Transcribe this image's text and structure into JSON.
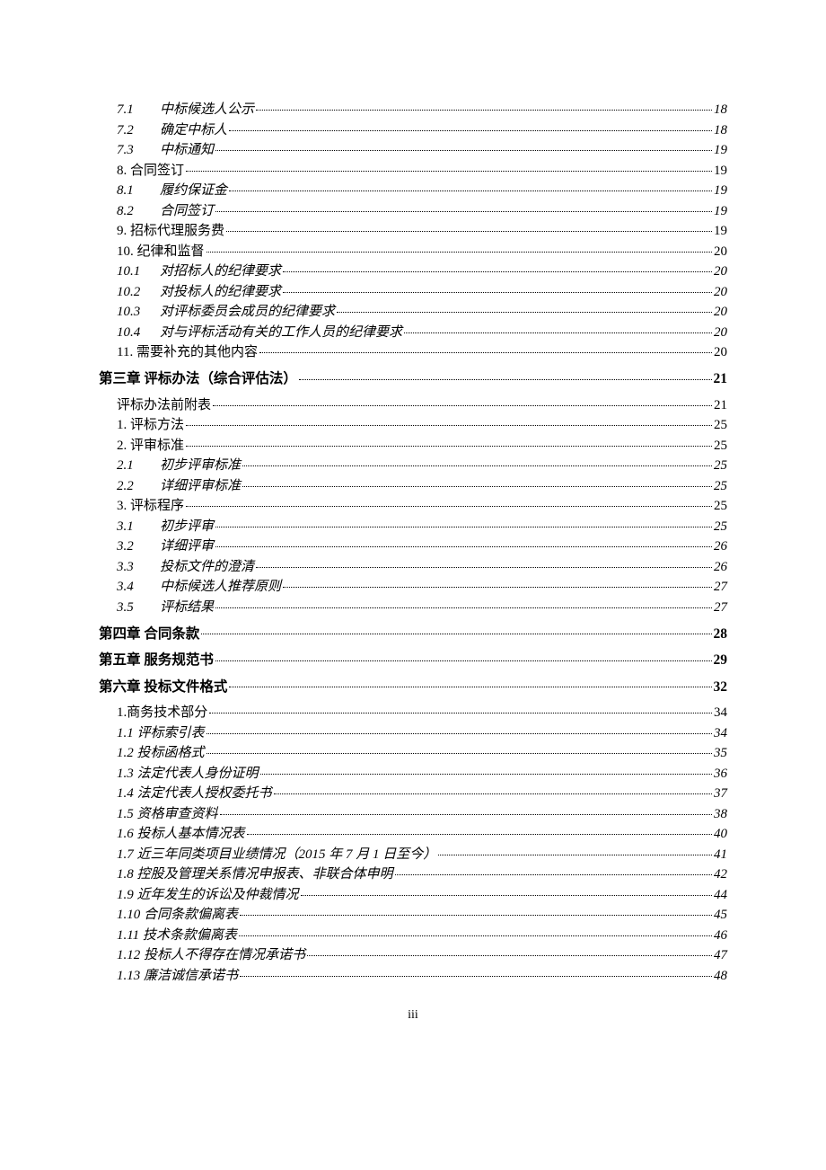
{
  "footer": "iii",
  "entries": [
    {
      "level": 3,
      "indent": 2,
      "num": "7.1",
      "label": "中标候选人公示",
      "page": "18",
      "italic": true
    },
    {
      "level": 3,
      "indent": 2,
      "num": "7.2",
      "label": "确定中标人",
      "page": "18",
      "italic": true
    },
    {
      "level": 3,
      "indent": 2,
      "num": "7.3",
      "label": "中标通知",
      "page": "19",
      "italic": true
    },
    {
      "level": 2,
      "indent": 1,
      "label": "8.  合同签订",
      "page": "19",
      "italic": false
    },
    {
      "level": 3,
      "indent": 2,
      "num": "8.1",
      "label": "履约保证金",
      "page": "19",
      "italic": true
    },
    {
      "level": 3,
      "indent": 2,
      "num": "8.2",
      "label": "合同签订",
      "page": "19",
      "italic": true
    },
    {
      "level": 2,
      "indent": 1,
      "label": "9.  招标代理服务费",
      "page": "19",
      "italic": false
    },
    {
      "level": 2,
      "indent": 1,
      "label": "10.  纪律和监督",
      "page": "20",
      "italic": false
    },
    {
      "level": 3,
      "indent": 2,
      "num": "10.1",
      "label": "对招标人的纪律要求",
      "page": "20",
      "italic": true
    },
    {
      "level": 3,
      "indent": 2,
      "num": "10.2",
      "label": "对投标人的纪律要求",
      "page": "20",
      "italic": true
    },
    {
      "level": 3,
      "indent": 2,
      "num": "10.3",
      "label": "对评标委员会成员的纪律要求",
      "page": "20",
      "italic": true
    },
    {
      "level": 3,
      "indent": 2,
      "num": "10.4",
      "label": "对与评标活动有关的工作人员的纪律要求",
      "page": "20",
      "italic": true
    },
    {
      "level": 2,
      "indent": 1,
      "label": "11.  需要补充的其他内容",
      "page": "20",
      "italic": false
    },
    {
      "level": 1,
      "indent": 0,
      "label": "第三章   评标办法（综合评估法）",
      "page": "21",
      "italic": false,
      "chapter": true
    },
    {
      "level": 2,
      "indent": 1,
      "label": "评标办法前附表",
      "page": "21",
      "italic": false
    },
    {
      "level": 2,
      "indent": 1,
      "label": "1.  评标方法",
      "page": "25",
      "italic": false
    },
    {
      "level": 2,
      "indent": 1,
      "label": "2.  评审标准",
      "page": "25",
      "italic": false
    },
    {
      "level": 3,
      "indent": 2,
      "num": "2.1",
      "label": "初步评审标准",
      "page": "25",
      "italic": true
    },
    {
      "level": 3,
      "indent": 2,
      "num": "2.2",
      "label": "详细评审标准",
      "page": "25",
      "italic": true
    },
    {
      "level": 2,
      "indent": 1,
      "label": "3.  评标程序",
      "page": "25",
      "italic": false
    },
    {
      "level": 3,
      "indent": 2,
      "num": "3.1",
      "label": "初步评审",
      "page": "25",
      "italic": true
    },
    {
      "level": 3,
      "indent": 2,
      "num": "3.2",
      "label": "详细评审",
      "page": "26",
      "italic": true
    },
    {
      "level": 3,
      "indent": 2,
      "num": "3.3",
      "label": "投标文件的澄清",
      "page": "26",
      "italic": true
    },
    {
      "level": 3,
      "indent": 2,
      "num": "3.4",
      "label": "中标候选人推荐原则",
      "page": "27",
      "italic": true
    },
    {
      "level": 3,
      "indent": 2,
      "num": "3.5",
      "label": "评标结果",
      "page": "27",
      "italic": true
    },
    {
      "level": 1,
      "indent": 0,
      "label": "第四章   合同条款",
      "page": "28",
      "italic": false,
      "chapter": true
    },
    {
      "level": 1,
      "indent": 0,
      "label": "第五章   服务规范书",
      "page": "29",
      "italic": false,
      "chapter": true
    },
    {
      "level": 1,
      "indent": 0,
      "label": "第六章   投标文件格式",
      "page": "32",
      "italic": false,
      "chapter": true
    },
    {
      "level": 2,
      "indent": 1,
      "label": "1.商务技术部分",
      "page": "34",
      "italic": false
    },
    {
      "level": 3,
      "indent": 2,
      "label": "1.1 评标索引表",
      "page": "34",
      "italic": true
    },
    {
      "level": 3,
      "indent": 2,
      "label": "1.2 投标函格式",
      "page": "35",
      "italic": true
    },
    {
      "level": 3,
      "indent": 2,
      "label": "1.3 法定代表人身份证明",
      "page": "36",
      "italic": true
    },
    {
      "level": 3,
      "indent": 2,
      "label": "1.4 法定代表人授权委托书",
      "page": "37",
      "italic": true
    },
    {
      "level": 3,
      "indent": 2,
      "label": "1.5 资格审查资料",
      "page": "38",
      "italic": true
    },
    {
      "level": 3,
      "indent": 2,
      "label": "1.6 投标人基本情况表",
      "page": "40",
      "italic": true
    },
    {
      "level": 3,
      "indent": 2,
      "label": "1.7 近三年同类项目业绩情况（2015 年 7 月 1 日至今）",
      "page": "41",
      "italic": true
    },
    {
      "level": 3,
      "indent": 2,
      "label": "1.8 控股及管理关系情况申报表、非联合体申明",
      "page": "42",
      "italic": true
    },
    {
      "level": 3,
      "indent": 2,
      "label": "1.9 近年发生的诉讼及仲裁情况",
      "page": "44",
      "italic": true
    },
    {
      "level": 3,
      "indent": 2,
      "label": "1.10 合同条款偏离表",
      "page": "45",
      "italic": true
    },
    {
      "level": 3,
      "indent": 2,
      "label": "1.11 技术条款偏离表",
      "page": "46",
      "italic": true
    },
    {
      "level": 3,
      "indent": 2,
      "label": "1.12 投标人不得存在情况承诺书",
      "page": "47",
      "italic": true
    },
    {
      "level": 3,
      "indent": 2,
      "label": "1.13 廉洁诚信承诺书",
      "page": "48",
      "italic": true
    }
  ]
}
